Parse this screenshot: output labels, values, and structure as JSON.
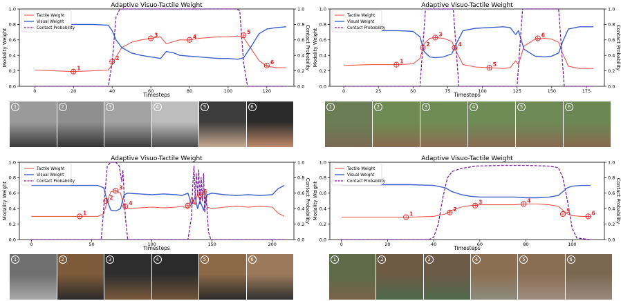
{
  "colors": {
    "tactile": "#e8554e",
    "visual": "#3a5fcd",
    "contact": "#7a1fa2",
    "marker": "#e02020"
  },
  "chart_data": [
    {
      "type": "line",
      "title": "Adaptive Visuo-Tactile Weight",
      "xlabel": "Timesteps",
      "ylabel": "Modality Weight",
      "ylabel_right": "Contact Probability",
      "xlim": [
        -8,
        134
      ],
      "ylim": [
        0,
        1.0
      ],
      "ylim_right": [
        0,
        1.0
      ],
      "xticks": [
        "0",
        "20",
        "40",
        "60",
        "80",
        "100",
        "120"
      ],
      "yticks": [
        "0.0",
        "0.2",
        "0.4",
        "0.6",
        "0.8",
        "1.0"
      ],
      "legend": [
        "Tactile Weight",
        "Visual Weight",
        "Contact Probability"
      ],
      "series": [
        {
          "name": "Tactile Weight",
          "x": [
            0,
            10,
            20,
            30,
            38,
            40,
            42,
            45,
            50,
            55,
            60,
            65,
            68,
            72,
            75,
            80,
            85,
            90,
            95,
            100,
            105,
            108,
            112,
            116,
            120,
            125,
            130
          ],
          "y": [
            0.21,
            0.2,
            0.19,
            0.2,
            0.21,
            0.28,
            0.38,
            0.5,
            0.57,
            0.6,
            0.62,
            0.64,
            0.55,
            0.58,
            0.6,
            0.6,
            0.62,
            0.63,
            0.64,
            0.64,
            0.65,
            0.63,
            0.48,
            0.33,
            0.26,
            0.24,
            0.24
          ]
        },
        {
          "name": "Visual Weight",
          "x": [
            0,
            10,
            20,
            30,
            38,
            40,
            42,
            45,
            50,
            55,
            60,
            65,
            68,
            72,
            75,
            80,
            85,
            90,
            95,
            100,
            105,
            108,
            112,
            116,
            120,
            125,
            130
          ],
          "y": [
            0.79,
            0.79,
            0.8,
            0.8,
            0.79,
            0.72,
            0.6,
            0.5,
            0.43,
            0.4,
            0.38,
            0.36,
            0.45,
            0.43,
            0.4,
            0.39,
            0.38,
            0.37,
            0.36,
            0.36,
            0.35,
            0.37,
            0.52,
            0.68,
            0.74,
            0.76,
            0.77
          ]
        },
        {
          "name": "Contact Probability",
          "x": [
            0,
            38,
            40,
            42,
            44,
            60,
            80,
            100,
            104,
            106,
            108,
            110,
            130
          ],
          "y": [
            0.0,
            0.0,
            0.3,
            0.9,
            1.0,
            1.0,
            1.0,
            1.0,
            1.0,
            0.98,
            0.3,
            0.0,
            0.0
          ]
        }
      ],
      "annotations": [
        {
          "label": "1",
          "x": 20,
          "y": 0.19
        },
        {
          "label": "2",
          "x": 40,
          "y": 0.32
        },
        {
          "label": "3",
          "x": 60,
          "y": 0.62
        },
        {
          "label": "4",
          "x": 80,
          "y": 0.6
        },
        {
          "label": "5",
          "x": 108,
          "y": 0.66
        },
        {
          "label": "6",
          "x": 120,
          "y": 0.27
        }
      ]
    },
    {
      "type": "line",
      "title": "Adaptive Visuo-Tactile Weight",
      "xlabel": "Timesteps",
      "ylabel": "Modality Weight",
      "ylabel_right": "Contact Probability",
      "xlim": [
        -10,
        188
      ],
      "ylim": [
        0,
        1.0
      ],
      "ylim_right": [
        0,
        1.0
      ],
      "xticks": [
        "0",
        "25",
        "50",
        "75",
        "100",
        "125",
        "150",
        "175"
      ],
      "yticks": [
        "0.0",
        "0.2",
        "0.4",
        "0.6",
        "0.8",
        "1.0"
      ],
      "legend": [
        "Tactile Weight",
        "Visual Weight",
        "Contact Probability"
      ],
      "series": [
        {
          "name": "Tactile Weight",
          "x": [
            0,
            20,
            40,
            50,
            55,
            58,
            62,
            66,
            72,
            78,
            82,
            86,
            95,
            105,
            115,
            120,
            124,
            126,
            130,
            138,
            145,
            150,
            155,
            158,
            162,
            170,
            180
          ],
          "y": [
            0.27,
            0.28,
            0.28,
            0.29,
            0.36,
            0.55,
            0.62,
            0.63,
            0.62,
            0.58,
            0.42,
            0.28,
            0.25,
            0.24,
            0.23,
            0.24,
            0.33,
            0.28,
            0.52,
            0.61,
            0.62,
            0.61,
            0.57,
            0.42,
            0.26,
            0.23,
            0.23
          ]
        },
        {
          "name": "Visual Weight",
          "x": [
            0,
            20,
            40,
            50,
            55,
            58,
            62,
            66,
            72,
            78,
            82,
            86,
            95,
            105,
            115,
            120,
            124,
            126,
            130,
            138,
            145,
            150,
            155,
            158,
            162,
            170,
            180
          ],
          "y": [
            0.73,
            0.72,
            0.72,
            0.71,
            0.64,
            0.45,
            0.38,
            0.37,
            0.38,
            0.42,
            0.58,
            0.72,
            0.75,
            0.76,
            0.77,
            0.76,
            0.67,
            0.72,
            0.48,
            0.39,
            0.38,
            0.39,
            0.43,
            0.58,
            0.74,
            0.77,
            0.77
          ]
        },
        {
          "name": "Contact Probability",
          "x": [
            0,
            55,
            57,
            59,
            61,
            79,
            81,
            83,
            125,
            127,
            129,
            155,
            157,
            159,
            180
          ],
          "y": [
            0.0,
            0.0,
            0.5,
            1.0,
            1.0,
            1.0,
            0.5,
            0.0,
            0.0,
            0.5,
            1.0,
            1.0,
            0.5,
            0.0,
            0.0
          ]
        }
      ],
      "annotations": [
        {
          "label": "1",
          "x": 38,
          "y": 0.28
        },
        {
          "label": "2",
          "x": 57,
          "y": 0.5
        },
        {
          "label": "3",
          "x": 66,
          "y": 0.63
        },
        {
          "label": "4",
          "x": 80,
          "y": 0.5
        },
        {
          "label": "5",
          "x": 105,
          "y": 0.24
        },
        {
          "label": "6",
          "x": 140,
          "y": 0.62
        }
      ]
    },
    {
      "type": "line",
      "title": "Adaptive Visuo-Tactile Weight",
      "xlabel": "Timesteps",
      "ylabel": "Modality Weight",
      "ylabel_right": "Contact Probability",
      "xlim": [
        -10,
        218
      ],
      "ylim": [
        0,
        1.0
      ],
      "ylim_right": [
        0,
        1.0
      ],
      "xticks": [
        "0",
        "50",
        "100",
        "150",
        "200"
      ],
      "yticks": [
        "0.0",
        "0.2",
        "0.4",
        "0.6",
        "0.8",
        "1.0"
      ],
      "legend": [
        "Tactile Weight",
        "Visual Weight",
        "Contact Probability"
      ],
      "series": [
        {
          "name": "Tactile Weight",
          "x": [
            0,
            20,
            40,
            55,
            60,
            63,
            66,
            70,
            74,
            77,
            80,
            90,
            100,
            110,
            120,
            125,
            130,
            133,
            136,
            138,
            140,
            143,
            146,
            150,
            160,
            170,
            180,
            190,
            200,
            205,
            210
          ],
          "y": [
            0.3,
            0.3,
            0.3,
            0.3,
            0.33,
            0.5,
            0.62,
            0.63,
            0.6,
            0.42,
            0.4,
            0.41,
            0.42,
            0.41,
            0.42,
            0.43,
            0.4,
            0.55,
            0.45,
            0.6,
            0.5,
            0.62,
            0.42,
            0.4,
            0.42,
            0.43,
            0.42,
            0.43,
            0.42,
            0.34,
            0.3
          ]
        },
        {
          "name": "Visual Weight",
          "x": [
            0,
            20,
            40,
            55,
            60,
            63,
            66,
            70,
            74,
            77,
            80,
            90,
            100,
            110,
            120,
            125,
            130,
            133,
            136,
            138,
            140,
            143,
            146,
            150,
            160,
            170,
            180,
            190,
            200,
            205,
            210
          ],
          "y": [
            0.7,
            0.7,
            0.7,
            0.7,
            0.67,
            0.5,
            0.38,
            0.37,
            0.4,
            0.58,
            0.6,
            0.59,
            0.58,
            0.59,
            0.58,
            0.57,
            0.6,
            0.45,
            0.55,
            0.4,
            0.5,
            0.38,
            0.58,
            0.6,
            0.58,
            0.57,
            0.58,
            0.57,
            0.58,
            0.66,
            0.7
          ]
        },
        {
          "name": "Contact Probability",
          "x": [
            0,
            58,
            60,
            63,
            66,
            70,
            73,
            75,
            76,
            78,
            80,
            130,
            133,
            134,
            135,
            136,
            137,
            138,
            139,
            140,
            141,
            142,
            143,
            144,
            145,
            147,
            149,
            210
          ],
          "y": [
            0.0,
            0.0,
            0.4,
            0.95,
            1.0,
            1.0,
            0.95,
            0.75,
            0.9,
            0.3,
            0.0,
            0.0,
            0.3,
            0.7,
            0.95,
            0.55,
            0.85,
            0.6,
            0.9,
            0.45,
            0.8,
            0.5,
            0.85,
            0.35,
            0.6,
            0.1,
            0.0,
            0.0
          ]
        }
      ],
      "annotations": [
        {
          "label": "1",
          "x": 40,
          "y": 0.3
        },
        {
          "label": "2",
          "x": 62,
          "y": 0.5
        },
        {
          "label": "3",
          "x": 70,
          "y": 0.63
        },
        {
          "label": "4",
          "x": 78,
          "y": 0.43
        },
        {
          "label": "5",
          "x": 130,
          "y": 0.44
        },
        {
          "label": "6",
          "x": 140,
          "y": 0.58
        }
      ]
    },
    {
      "type": "line",
      "title": "Adaptive Visuo-Tactile Weight",
      "xlabel": "Timesteps",
      "ylabel": "Modality Weight",
      "ylabel_right": "Contact Probability",
      "xlim": [
        -5,
        114
      ],
      "ylim": [
        0,
        1.0
      ],
      "ylim_right": [
        0,
        1.0
      ],
      "xticks": [
        "0",
        "20",
        "40",
        "60",
        "80",
        "100"
      ],
      "yticks": [
        "0.0",
        "0.2",
        "0.4",
        "0.6",
        "0.8",
        "1.0"
      ],
      "legend": [
        "Tactile Weight",
        "Visual Weight",
        "Contact Probability"
      ],
      "series": [
        {
          "name": "Tactile Weight",
          "x": [
            0,
            10,
            20,
            30,
            40,
            45,
            48,
            52,
            56,
            60,
            65,
            70,
            75,
            80,
            85,
            90,
            94,
            96,
            98,
            100,
            104,
            108
          ],
          "y": [
            0.29,
            0.29,
            0.29,
            0.29,
            0.3,
            0.33,
            0.38,
            0.42,
            0.44,
            0.45,
            0.45,
            0.45,
            0.45,
            0.46,
            0.46,
            0.45,
            0.43,
            0.38,
            0.33,
            0.31,
            0.3,
            0.3
          ]
        },
        {
          "name": "Visual Weight",
          "x": [
            0,
            10,
            20,
            30,
            40,
            45,
            48,
            52,
            56,
            60,
            65,
            70,
            75,
            80,
            85,
            90,
            94,
            96,
            98,
            100,
            104,
            108
          ],
          "y": [
            0.71,
            0.71,
            0.71,
            0.71,
            0.7,
            0.67,
            0.62,
            0.58,
            0.56,
            0.55,
            0.55,
            0.55,
            0.55,
            0.54,
            0.54,
            0.55,
            0.57,
            0.62,
            0.67,
            0.69,
            0.7,
            0.7
          ]
        },
        {
          "name": "Contact Probability",
          "x": [
            0,
            38,
            40,
            42,
            44,
            46,
            48,
            52,
            58,
            70,
            80,
            90,
            94,
            96,
            98,
            100,
            102,
            108
          ],
          "y": [
            0.0,
            0.0,
            0.03,
            0.2,
            0.55,
            0.8,
            0.88,
            0.92,
            0.95,
            0.96,
            0.96,
            0.95,
            0.93,
            0.8,
            0.5,
            0.15,
            0.02,
            0.0
          ]
        }
      ],
      "annotations": [
        {
          "label": "1",
          "x": 28,
          "y": 0.29
        },
        {
          "label": "2",
          "x": 47,
          "y": 0.35
        },
        {
          "label": "3",
          "x": 58,
          "y": 0.44
        },
        {
          "label": "4",
          "x": 79,
          "y": 0.46
        },
        {
          "label": "5",
          "x": 96,
          "y": 0.33
        },
        {
          "label": "6",
          "x": 107,
          "y": 0.3
        }
      ]
    }
  ],
  "strips": [
    {
      "labels": [
        "1",
        "2",
        "3",
        "4",
        "5",
        "6"
      ],
      "tones": [
        [
          "#9a9a9a",
          "#3a3a3a"
        ],
        [
          "#8f8f8f",
          "#333333"
        ],
        [
          "#a3a3a3",
          "#3b3b3b"
        ],
        [
          "#bdbdbd",
          "#4a4a4a"
        ],
        [
          "#3c3c3c",
          "#c7a98f"
        ],
        [
          "#2b2b2b",
          "#c08a6a"
        ]
      ]
    },
    {
      "labels": [
        "1",
        "2",
        "3",
        "4",
        "5",
        "6"
      ],
      "tones": [
        [
          "#6b7d55",
          "#7b6a55"
        ],
        [
          "#6e8a52",
          "#8a6a50"
        ],
        [
          "#708c55",
          "#8c6d52"
        ],
        [
          "#6f8b56",
          "#8a6c52"
        ],
        [
          "#6e8955",
          "#896b51"
        ],
        [
          "#6b8753",
          "#876a50"
        ]
      ]
    },
    {
      "labels": [
        "1",
        "2",
        "3",
        "4",
        "5",
        "6"
      ],
      "tones": [
        [
          "#6f6f6f",
          "#a9a9a9"
        ],
        [
          "#7d5a3a",
          "#2a2a2a"
        ],
        [
          "#2e2e2e",
          "#7a583a"
        ],
        [
          "#2c2c2c",
          "#73553a"
        ],
        [
          "#8a6848",
          "#2a2a2a"
        ],
        [
          "#9a7a5a",
          "#303030"
        ]
      ]
    },
    {
      "labels": [
        "1",
        "2",
        "3",
        "4",
        "5",
        "6"
      ],
      "tones": [
        [
          "#5d6b4a",
          "#7a6248"
        ],
        [
          "#6c5a45",
          "#4d6a4a"
        ],
        [
          "#6b5a46",
          "#4f6b4c"
        ],
        [
          "#8b6f52",
          "#8d8c7f"
        ],
        [
          "#8a6e53",
          "#a08d80"
        ],
        [
          "#7b6852",
          "#9a8a7f"
        ]
      ]
    }
  ]
}
